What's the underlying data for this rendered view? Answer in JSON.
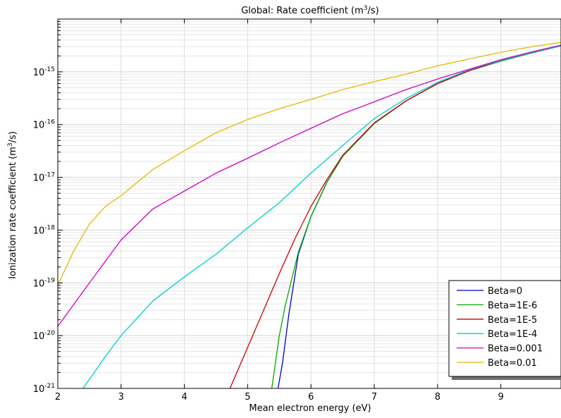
{
  "chart_data": {
    "type": "line",
    "title": "Global: Rate coefficient (m³/s)",
    "title_parts": {
      "pre": "Global: Rate coefficient (m",
      "sup": "3",
      "post": "/s)"
    },
    "xlabel": "Mean electron energy (eV)",
    "ylabel_parts": {
      "pre": "Ionization rate coefficient (m",
      "sup": "3",
      "post": "/s)"
    },
    "xlim": [
      2,
      9.95
    ],
    "ylim": [
      1e-21,
      1e-14
    ],
    "y_scale": "log",
    "x_ticks": [
      2,
      3,
      4,
      5,
      6,
      7,
      8,
      9
    ],
    "y_ticks": [
      {
        "exp": -21,
        "base": "10",
        "sup": "-21"
      },
      {
        "exp": -20,
        "base": "10",
        "sup": "-20"
      },
      {
        "exp": -19,
        "base": "10",
        "sup": "-19"
      },
      {
        "exp": -18,
        "base": "10",
        "sup": "-18"
      },
      {
        "exp": -17,
        "base": "10",
        "sup": "-17"
      },
      {
        "exp": -16,
        "base": "10",
        "sup": "-16"
      },
      {
        "exp": -15,
        "base": "10",
        "sup": "-15"
      }
    ],
    "grid": true,
    "legend_position": "bottom-right",
    "series": [
      {
        "name": "Beta=0",
        "color": "#0000cc",
        "x": [
          5.48,
          5.55,
          5.65,
          5.8,
          6.0,
          6.25,
          6.5,
          7.0,
          7.5,
          8.0,
          8.5,
          9.0,
          9.5,
          9.95
        ],
        "y": [
          1e-21,
          3e-21,
          2.5e-20,
          3.5e-19,
          1.8e-18,
          8e-18,
          2.5e-17,
          1.05e-16,
          2.8e-16,
          6e-16,
          1.05e-15,
          1.6e-15,
          2.3e-15,
          3.1e-15
        ]
      },
      {
        "name": "Beta=1E-6",
        "color": "#00aa00",
        "x": [
          5.38,
          5.5,
          5.6,
          5.8,
          6.0,
          6.25,
          6.5,
          7.0,
          7.5,
          8.0,
          8.5,
          9.0,
          9.5,
          9.95
        ],
        "y": [
          1e-21,
          1e-20,
          4e-20,
          3.8e-19,
          1.8e-18,
          8e-18,
          2.5e-17,
          1.05e-16,
          2.8e-16,
          6e-16,
          1.05e-15,
          1.6e-15,
          2.3e-15,
          3.1e-15
        ]
      },
      {
        "name": "Beta=1E-5",
        "color": "#cc0000",
        "x": [
          4.72,
          5.0,
          5.25,
          5.5,
          5.75,
          6.0,
          6.25,
          6.5,
          7.0,
          7.5,
          8.0,
          8.5,
          9.0,
          9.5,
          9.95
        ],
        "y": [
          1e-21,
          6e-21,
          3e-20,
          1.5e-19,
          7e-19,
          2.8e-18,
          9e-18,
          2.6e-17,
          1.08e-16,
          2.8e-16,
          6e-16,
          1.05e-15,
          1.65e-15,
          2.35e-15,
          3.1e-15
        ]
      },
      {
        "name": "Beta=1E-4",
        "color": "#00cccc",
        "x": [
          2.4,
          2.75,
          3.0,
          3.5,
          4.0,
          4.5,
          5.0,
          5.5,
          6.0,
          6.5,
          7.0,
          7.5,
          8.0,
          8.5,
          9.0,
          9.5,
          9.95
        ],
        "y": [
          1e-21,
          4e-21,
          1e-20,
          4.5e-20,
          1.3e-19,
          3.5e-19,
          1.1e-18,
          3.3e-18,
          1.2e-17,
          4e-17,
          1.3e-16,
          3.1e-16,
          6.3e-16,
          1.1e-15,
          1.65e-15,
          2.35e-15,
          3.1e-15
        ]
      },
      {
        "name": "Beta=0.001",
        "color": "#cc00cc",
        "x": [
          2.0,
          2.5,
          3.0,
          3.5,
          4.0,
          4.5,
          5.0,
          5.5,
          6.0,
          6.5,
          7.0,
          7.5,
          8.0,
          8.5,
          9.0,
          9.5,
          9.95
        ],
        "y": [
          1.5e-20,
          1e-19,
          6.5e-19,
          2.5e-18,
          5.5e-18,
          1.2e-17,
          2.3e-17,
          4.5e-17,
          8.5e-17,
          1.6e-16,
          2.7e-16,
          4.6e-16,
          7.3e-16,
          1.12e-15,
          1.7e-15,
          2.4e-15,
          3.2e-15
        ]
      },
      {
        "name": "Beta=0.01",
        "color": "#e6b800",
        "x": [
          2.0,
          2.25,
          2.5,
          2.75,
          3.0,
          3.5,
          4.0,
          4.5,
          5.0,
          5.5,
          6.0,
          6.5,
          7.0,
          7.5,
          8.0,
          8.5,
          9.0,
          9.5,
          9.95
        ],
        "y": [
          9e-20,
          4e-19,
          1.3e-18,
          2.8e-18,
          4.5e-18,
          1.4e-17,
          3.2e-17,
          7e-17,
          1.25e-16,
          2e-16,
          3e-16,
          4.6e-16,
          6.5e-16,
          9e-16,
          1.3e-15,
          1.75e-15,
          2.35e-15,
          3e-15,
          3.6e-15
        ]
      }
    ]
  }
}
